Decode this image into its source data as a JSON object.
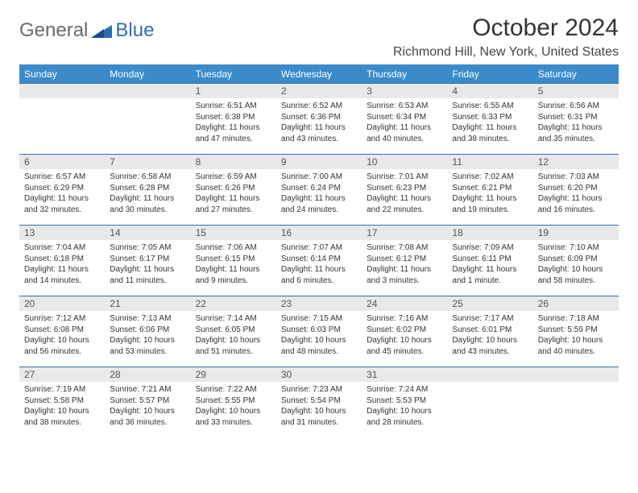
{
  "logo": {
    "general": "General",
    "blue": "Blue"
  },
  "title": "October 2024",
  "location": "Richmond Hill, New York, United States",
  "colors": {
    "header_bg": "#3b8bca",
    "header_text": "#ffffff",
    "daynum_bg": "#e9e9e9",
    "border": "#2f6fb0",
    "logo_gray": "#6a6a6a",
    "logo_blue": "#2f6fb0"
  },
  "day_names": [
    "Sunday",
    "Monday",
    "Tuesday",
    "Wednesday",
    "Thursday",
    "Friday",
    "Saturday"
  ],
  "weeks": [
    [
      null,
      null,
      {
        "n": "1",
        "sr": "Sunrise: 6:51 AM",
        "ss": "Sunset: 6:38 PM",
        "dl": "Daylight: 11 hours and 47 minutes."
      },
      {
        "n": "2",
        "sr": "Sunrise: 6:52 AM",
        "ss": "Sunset: 6:36 PM",
        "dl": "Daylight: 11 hours and 43 minutes."
      },
      {
        "n": "3",
        "sr": "Sunrise: 6:53 AM",
        "ss": "Sunset: 6:34 PM",
        "dl": "Daylight: 11 hours and 40 minutes."
      },
      {
        "n": "4",
        "sr": "Sunrise: 6:55 AM",
        "ss": "Sunset: 6:33 PM",
        "dl": "Daylight: 11 hours and 38 minutes."
      },
      {
        "n": "5",
        "sr": "Sunrise: 6:56 AM",
        "ss": "Sunset: 6:31 PM",
        "dl": "Daylight: 11 hours and 35 minutes."
      }
    ],
    [
      {
        "n": "6",
        "sr": "Sunrise: 6:57 AM",
        "ss": "Sunset: 6:29 PM",
        "dl": "Daylight: 11 hours and 32 minutes."
      },
      {
        "n": "7",
        "sr": "Sunrise: 6:58 AM",
        "ss": "Sunset: 6:28 PM",
        "dl": "Daylight: 11 hours and 30 minutes."
      },
      {
        "n": "8",
        "sr": "Sunrise: 6:59 AM",
        "ss": "Sunset: 6:26 PM",
        "dl": "Daylight: 11 hours and 27 minutes."
      },
      {
        "n": "9",
        "sr": "Sunrise: 7:00 AM",
        "ss": "Sunset: 6:24 PM",
        "dl": "Daylight: 11 hours and 24 minutes."
      },
      {
        "n": "10",
        "sr": "Sunrise: 7:01 AM",
        "ss": "Sunset: 6:23 PM",
        "dl": "Daylight: 11 hours and 22 minutes."
      },
      {
        "n": "11",
        "sr": "Sunrise: 7:02 AM",
        "ss": "Sunset: 6:21 PM",
        "dl": "Daylight: 11 hours and 19 minutes."
      },
      {
        "n": "12",
        "sr": "Sunrise: 7:03 AM",
        "ss": "Sunset: 6:20 PM",
        "dl": "Daylight: 11 hours and 16 minutes."
      }
    ],
    [
      {
        "n": "13",
        "sr": "Sunrise: 7:04 AM",
        "ss": "Sunset: 6:18 PM",
        "dl": "Daylight: 11 hours and 14 minutes."
      },
      {
        "n": "14",
        "sr": "Sunrise: 7:05 AM",
        "ss": "Sunset: 6:17 PM",
        "dl": "Daylight: 11 hours and 11 minutes."
      },
      {
        "n": "15",
        "sr": "Sunrise: 7:06 AM",
        "ss": "Sunset: 6:15 PM",
        "dl": "Daylight: 11 hours and 9 minutes."
      },
      {
        "n": "16",
        "sr": "Sunrise: 7:07 AM",
        "ss": "Sunset: 6:14 PM",
        "dl": "Daylight: 11 hours and 6 minutes."
      },
      {
        "n": "17",
        "sr": "Sunrise: 7:08 AM",
        "ss": "Sunset: 6:12 PM",
        "dl": "Daylight: 11 hours and 3 minutes."
      },
      {
        "n": "18",
        "sr": "Sunrise: 7:09 AM",
        "ss": "Sunset: 6:11 PM",
        "dl": "Daylight: 11 hours and 1 minute."
      },
      {
        "n": "19",
        "sr": "Sunrise: 7:10 AM",
        "ss": "Sunset: 6:09 PM",
        "dl": "Daylight: 10 hours and 58 minutes."
      }
    ],
    [
      {
        "n": "20",
        "sr": "Sunrise: 7:12 AM",
        "ss": "Sunset: 6:08 PM",
        "dl": "Daylight: 10 hours and 56 minutes."
      },
      {
        "n": "21",
        "sr": "Sunrise: 7:13 AM",
        "ss": "Sunset: 6:06 PM",
        "dl": "Daylight: 10 hours and 53 minutes."
      },
      {
        "n": "22",
        "sr": "Sunrise: 7:14 AM",
        "ss": "Sunset: 6:05 PM",
        "dl": "Daylight: 10 hours and 51 minutes."
      },
      {
        "n": "23",
        "sr": "Sunrise: 7:15 AM",
        "ss": "Sunset: 6:03 PM",
        "dl": "Daylight: 10 hours and 48 minutes."
      },
      {
        "n": "24",
        "sr": "Sunrise: 7:16 AM",
        "ss": "Sunset: 6:02 PM",
        "dl": "Daylight: 10 hours and 45 minutes."
      },
      {
        "n": "25",
        "sr": "Sunrise: 7:17 AM",
        "ss": "Sunset: 6:01 PM",
        "dl": "Daylight: 10 hours and 43 minutes."
      },
      {
        "n": "26",
        "sr": "Sunrise: 7:18 AM",
        "ss": "Sunset: 5:59 PM",
        "dl": "Daylight: 10 hours and 40 minutes."
      }
    ],
    [
      {
        "n": "27",
        "sr": "Sunrise: 7:19 AM",
        "ss": "Sunset: 5:58 PM",
        "dl": "Daylight: 10 hours and 38 minutes."
      },
      {
        "n": "28",
        "sr": "Sunrise: 7:21 AM",
        "ss": "Sunset: 5:57 PM",
        "dl": "Daylight: 10 hours and 36 minutes."
      },
      {
        "n": "29",
        "sr": "Sunrise: 7:22 AM",
        "ss": "Sunset: 5:55 PM",
        "dl": "Daylight: 10 hours and 33 minutes."
      },
      {
        "n": "30",
        "sr": "Sunrise: 7:23 AM",
        "ss": "Sunset: 5:54 PM",
        "dl": "Daylight: 10 hours and 31 minutes."
      },
      {
        "n": "31",
        "sr": "Sunrise: 7:24 AM",
        "ss": "Sunset: 5:53 PM",
        "dl": "Daylight: 10 hours and 28 minutes."
      },
      null,
      null
    ]
  ]
}
